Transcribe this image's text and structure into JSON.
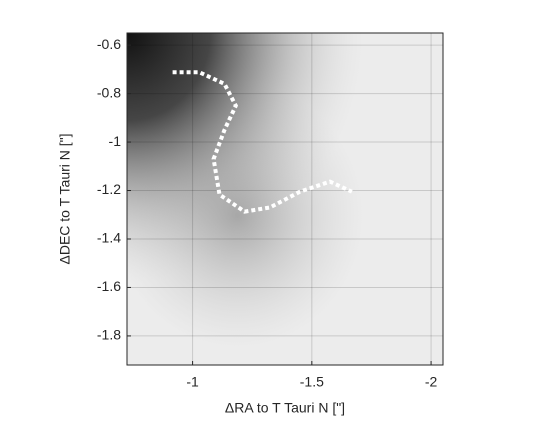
{
  "chart_data": {
    "type": "line",
    "xlabel": "ΔRA to T Tauri N [\"]",
    "ylabel": "ΔDEC to T Tauri N [\"]",
    "x": [
      -0.916,
      -1.029,
      -1.134,
      -1.181,
      -1.134,
      -1.088,
      -1.113,
      -1.218,
      -1.324,
      -1.45,
      -1.576,
      -1.668
    ],
    "values": [
      -0.712,
      -0.712,
      -0.76,
      -0.85,
      -0.95,
      -1.07,
      -1.217,
      -1.287,
      -1.27,
      -1.205,
      -1.163,
      -1.205
    ],
    "color": "#ffffff",
    "xlim": [
      -0.725,
      -2.05
    ],
    "ylim": [
      -1.92,
      -0.55
    ],
    "xticks": [
      -1,
      -1.5,
      -2
    ],
    "yticks": [
      -0.6,
      -0.8,
      -1,
      -1.2,
      -1.4,
      -1.6,
      -1.8
    ],
    "grid": true
  }
}
